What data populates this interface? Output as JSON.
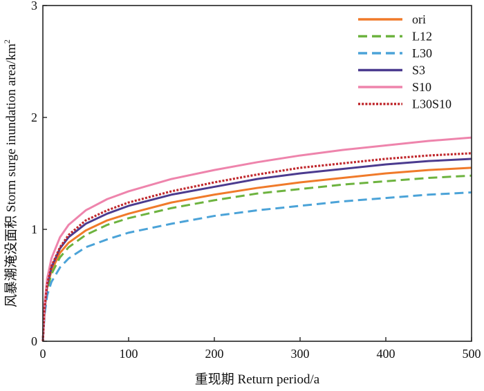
{
  "chart_data": {
    "type": "line",
    "xlabel": "重现期 Return period/a",
    "ylabel": "风暴潮淹没面积 Storm surge inundation area/km",
    "ylabel_sup": "2",
    "xlim": [
      0,
      500
    ],
    "ylim": [
      0,
      3
    ],
    "xticks": [
      "0",
      "100",
      "200",
      "300",
      "400",
      "500"
    ],
    "yticks": [
      "0",
      "1",
      "2",
      "3"
    ],
    "grid": false,
    "legend_position": "top-right",
    "x": [
      0,
      2,
      5,
      10,
      20,
      30,
      50,
      75,
      100,
      150,
      200,
      250,
      300,
      350,
      400,
      450,
      500
    ],
    "series": [
      {
        "name": "ori",
        "color": "#F07A2A",
        "style": "solid",
        "values": [
          0,
          0.28,
          0.48,
          0.63,
          0.79,
          0.88,
          0.99,
          1.08,
          1.14,
          1.24,
          1.31,
          1.37,
          1.42,
          1.46,
          1.5,
          1.53,
          1.55
        ]
      },
      {
        "name": "L12",
        "color": "#6DB33F",
        "style": "dashed",
        "values": [
          0,
          0.27,
          0.46,
          0.6,
          0.75,
          0.84,
          0.95,
          1.04,
          1.1,
          1.19,
          1.26,
          1.32,
          1.36,
          1.4,
          1.43,
          1.46,
          1.48
        ]
      },
      {
        "name": "L30",
        "color": "#4BA3D8",
        "style": "dashed",
        "values": [
          0,
          0.24,
          0.41,
          0.53,
          0.66,
          0.74,
          0.84,
          0.91,
          0.97,
          1.05,
          1.12,
          1.17,
          1.21,
          1.25,
          1.28,
          1.31,
          1.33
        ]
      },
      {
        "name": "S3",
        "color": "#4B3B8F",
        "style": "solid",
        "values": [
          0,
          0.29,
          0.5,
          0.66,
          0.83,
          0.93,
          1.05,
          1.14,
          1.21,
          1.31,
          1.38,
          1.45,
          1.5,
          1.54,
          1.58,
          1.61,
          1.63
        ]
      },
      {
        "name": "S10",
        "color": "#EE84AC",
        "style": "solid",
        "values": [
          0,
          0.33,
          0.56,
          0.74,
          0.93,
          1.04,
          1.17,
          1.27,
          1.34,
          1.45,
          1.53,
          1.6,
          1.66,
          1.71,
          1.75,
          1.79,
          1.82
        ]
      },
      {
        "name": "L30S10",
        "color": "#C0282D",
        "style": "dotted",
        "values": [
          0,
          0.3,
          0.51,
          0.67,
          0.84,
          0.95,
          1.08,
          1.17,
          1.24,
          1.34,
          1.42,
          1.49,
          1.55,
          1.59,
          1.63,
          1.66,
          1.68
        ]
      }
    ]
  }
}
